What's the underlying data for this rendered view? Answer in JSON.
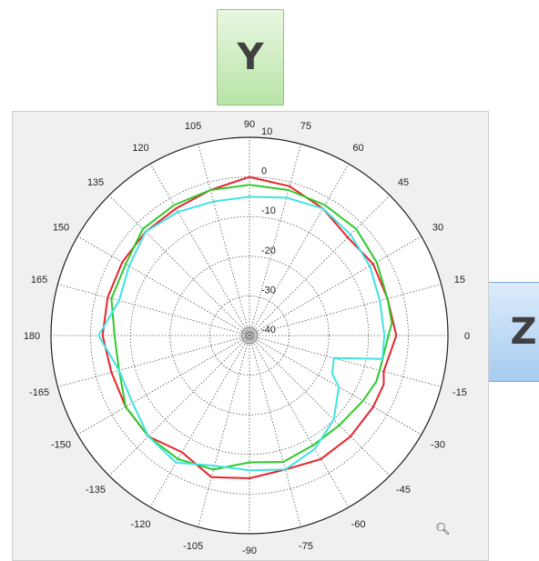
{
  "y_label": "Y",
  "z_label": "Z",
  "zoom_icon": "magnifier-plus-icon",
  "chart_data": {
    "type": "polar-line",
    "angle_unit": "deg",
    "angle_ticks": [
      90,
      75,
      60,
      45,
      30,
      15,
      0,
      -15,
      -30,
      -45,
      -60,
      -75,
      -90,
      -105,
      -120,
      -135,
      -150,
      -165,
      180,
      165,
      150,
      135,
      120,
      105
    ],
    "radial_ticks": [
      10,
      0,
      -10,
      -20,
      -30,
      -40
    ],
    "rlim": [
      -40,
      10
    ],
    "grid": true,
    "colors": {
      "red": "#e8232a",
      "green": "#2ecb2b",
      "cyan": "#3fe3e3"
    },
    "series": [
      {
        "color": "#e8232a",
        "angles": [
          90,
          75,
          60,
          45,
          30,
          15,
          0,
          -15,
          -20,
          -30,
          -45,
          -60,
          -75,
          -90,
          -105,
          -120,
          -135,
          -150,
          -165,
          180,
          165,
          150,
          135,
          120,
          105,
          90
        ],
        "values": [
          0,
          -1,
          -3,
          -5,
          -4,
          -4,
          -3,
          -5,
          -4,
          -4,
          -4,
          -4,
          -5,
          -4,
          -3,
          -6,
          -4,
          -4,
          -4,
          -3,
          -3,
          -3,
          -3,
          -3,
          -2,
          0
        ]
      },
      {
        "color": "#2ecb2b",
        "angles": [
          90,
          75,
          60,
          45,
          30,
          15,
          5,
          0,
          -12,
          -20,
          -30,
          -45,
          -60,
          -75,
          -90,
          -105,
          -120,
          -135,
          -150,
          -165,
          180,
          165,
          150,
          135,
          120,
          105,
          90
        ],
        "values": [
          -2,
          -2,
          -2,
          -2,
          -3,
          -4,
          -4,
          -5,
          -6,
          -6,
          -7,
          -8,
          -8,
          -7,
          -8,
          -5,
          -4,
          -4,
          -4,
          -6,
          -6,
          -4,
          -4,
          -2,
          -2,
          -2,
          -2
        ]
      },
      {
        "color": "#3fe3e3",
        "angles": [
          90,
          75,
          60,
          45,
          30,
          15,
          0,
          -10,
          -15,
          -25,
          -30,
          -45,
          -60,
          -75,
          -90,
          -105,
          -120,
          -135,
          -150,
          -165,
          180,
          165,
          150,
          135,
          120,
          105,
          90
        ],
        "values": [
          -5,
          -4,
          -3,
          -4,
          -5,
          -6,
          -6,
          -6,
          -18,
          -17,
          -14,
          -10,
          -7,
          -5,
          -6,
          -6,
          -3,
          -4,
          -6,
          -6,
          -2,
          -6,
          -5,
          -3,
          -4,
          -5,
          -5
        ]
      }
    ]
  }
}
